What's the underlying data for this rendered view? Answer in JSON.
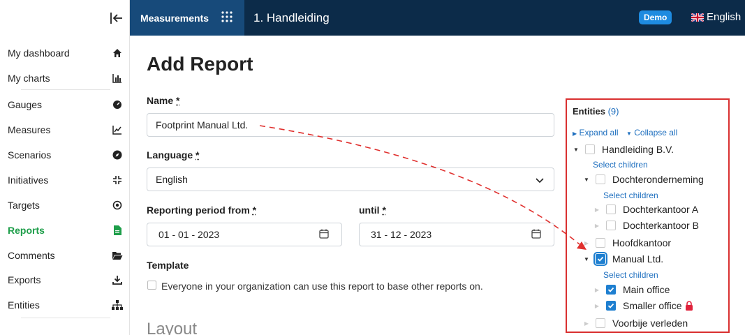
{
  "sidebar": {
    "items": [
      {
        "label": "My dashboard",
        "icon": "home-icon"
      },
      {
        "label": "My charts",
        "icon": "bar-chart-icon"
      },
      {
        "label": "Gauges",
        "icon": "gauge-icon"
      },
      {
        "label": "Measures",
        "icon": "line-chart-icon"
      },
      {
        "label": "Scenarios",
        "icon": "compass-icon"
      },
      {
        "label": "Initiatives",
        "icon": "compress-icon"
      },
      {
        "label": "Targets",
        "icon": "target-icon"
      },
      {
        "label": "Reports",
        "icon": "report-icon",
        "active": true
      },
      {
        "label": "Comments",
        "icon": "folder-open-icon"
      },
      {
        "label": "Exports",
        "icon": "download-icon"
      },
      {
        "label": "Entities",
        "icon": "hierarchy-icon"
      }
    ]
  },
  "header": {
    "module": "Measurements",
    "title": "1. Handleiding",
    "badge": "Demo",
    "language": "English"
  },
  "form": {
    "page_title": "Add Report",
    "name_label": "Name",
    "name_value": "Footprint Manual Ltd.",
    "language_label": "Language",
    "language_value": "English",
    "period_from_label": "Reporting period from",
    "period_from_value": "01 - 01 - 2023",
    "until_label": "until",
    "until_value": "31 - 12 - 2023",
    "required_mark": "*",
    "template_label": "Template",
    "template_text": "Everyone in your organization can use this report to base other reports on.",
    "layout_heading": "Layout"
  },
  "entities": {
    "title": "Entities",
    "count": "(9)",
    "expand_all": "Expand all",
    "collapse_all": "Collapse all",
    "select_children": "Select children",
    "tree": [
      {
        "label": "Handleiding B.V.",
        "checked": false
      },
      {
        "label": "Dochteronderneming",
        "checked": false
      },
      {
        "label": "Dochterkantoor A",
        "checked": false
      },
      {
        "label": "Dochterkantoor B",
        "checked": false
      },
      {
        "label": "Hoofdkantoor",
        "checked": false
      },
      {
        "label": "Manual Ltd.",
        "checked": true
      },
      {
        "label": "Main office",
        "checked": true
      },
      {
        "label": "Smaller office",
        "checked": true,
        "locked": true
      },
      {
        "label": "Voorbije verleden",
        "checked": false
      }
    ]
  },
  "colors": {
    "header_bg": "#0c2b49",
    "module_bg": "#174a7a",
    "accent_green": "#1e9e4a",
    "link_blue": "#1e6fbf",
    "annotation_red": "#d93030"
  }
}
